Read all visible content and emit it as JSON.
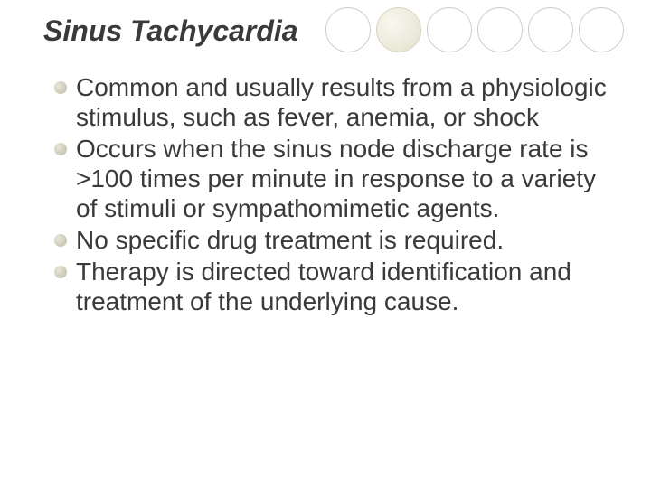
{
  "title": "Sinus Tachycardia",
  "bullets": [
    "Common and usually results from a physiologic stimulus, such as fever, anemia, or shock",
    "Occurs when the sinus node discharge rate is >100 times per minute in response to a variety of stimuli or sympathomimetic agents.",
    "No specific drug treatment is required.",
    "Therapy is directed toward identification and treatment of the underlying cause."
  ],
  "decor": {
    "circle_count": 6,
    "shaded_index": 1,
    "circle_border": "#cccccc",
    "shaded_fill": "#eceadb",
    "bullet_fill": "#cfccb8",
    "text_color": "#3a3a3a",
    "background": "#ffffff",
    "title_fontsize": 32,
    "body_fontsize": 28
  }
}
